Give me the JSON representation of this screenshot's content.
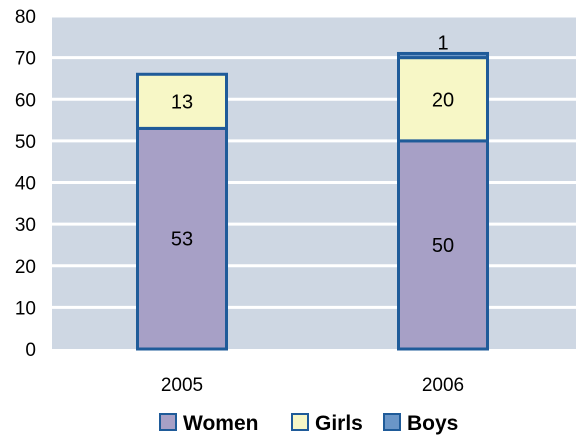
{
  "chart_data": {
    "type": "bar",
    "stacked": true,
    "categories": [
      "2005",
      "2006"
    ],
    "series": [
      {
        "name": "Women",
        "values": [
          53,
          50
        ],
        "color": "#a7a0c6"
      },
      {
        "name": "Girls",
        "values": [
          13,
          20
        ],
        "color": "#f7f7c6"
      },
      {
        "name": "Boys",
        "values": [
          0,
          1
        ],
        "color": "#6a96c8"
      }
    ],
    "data_labels": [
      [
        "53",
        "13",
        ""
      ],
      [
        "50",
        "20",
        "1"
      ]
    ],
    "y_ticks": [
      "0",
      "10",
      "20",
      "30",
      "40",
      "50",
      "60",
      "70",
      "80"
    ],
    "ylim": [
      0,
      80
    ],
    "grid": true,
    "legend_position": "bottom",
    "bar_outline_color": "#1f5b99",
    "plot_background": "#ced7e3"
  }
}
